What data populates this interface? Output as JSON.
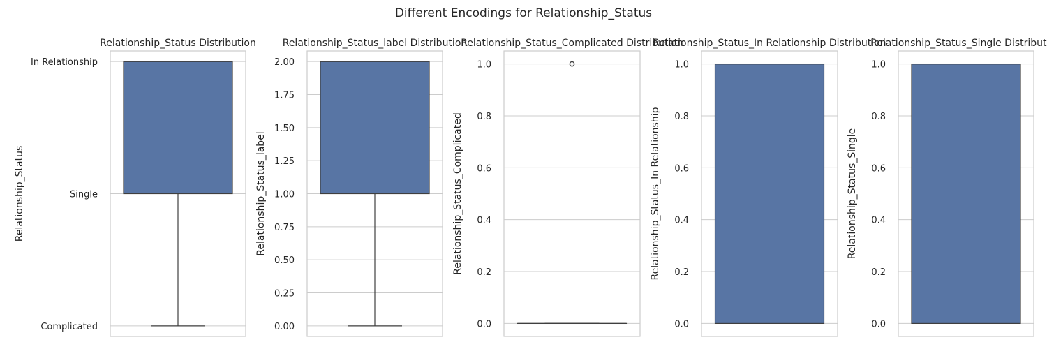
{
  "figure": {
    "title": "Different Encodings for Relationship_Status",
    "box_color": "#5875a4",
    "line_color": "#3f3f3f",
    "grid_color": "#cccccc"
  },
  "chart_data": [
    {
      "type": "box",
      "title": "Relationship_Status Distribution",
      "ylabel": "Relationship_Status",
      "y_categorical": true,
      "ytick_labels": [
        "Complicated",
        "Single",
        "In Relationship"
      ],
      "ytick_values": [
        0,
        1,
        2
      ],
      "ylim": [
        -0.08,
        2.08
      ],
      "box": {
        "whisker_low": 0,
        "q1": 1,
        "median": 2,
        "q3": 2,
        "whisker_high": 2,
        "fliers": []
      },
      "grid": true
    },
    {
      "type": "box",
      "title": "Relationship_Status_label Distribution",
      "ylabel": "Relationship_Status_label",
      "y_categorical": false,
      "ytick_labels": [
        "0.00",
        "0.25",
        "0.50",
        "0.75",
        "1.00",
        "1.25",
        "1.50",
        "1.75",
        "2.00"
      ],
      "ytick_values": [
        0,
        0.25,
        0.5,
        0.75,
        1.0,
        1.25,
        1.5,
        1.75,
        2.0
      ],
      "ylim": [
        -0.08,
        2.08
      ],
      "box": {
        "whisker_low": 0,
        "q1": 1,
        "median": 2,
        "q3": 2,
        "whisker_high": 2,
        "fliers": []
      },
      "grid": true
    },
    {
      "type": "box",
      "title": "Relationship_Status_Complicated Distribution",
      "ylabel": "Relationship_Status_Complicated",
      "y_categorical": false,
      "ytick_labels": [
        "0.0",
        "0.2",
        "0.4",
        "0.6",
        "0.8",
        "1.0"
      ],
      "ytick_values": [
        0,
        0.2,
        0.4,
        0.6,
        0.8,
        1.0
      ],
      "ylim": [
        -0.05,
        1.05
      ],
      "box": {
        "whisker_low": 0,
        "q1": 0,
        "median": 0,
        "q3": 0,
        "whisker_high": 0,
        "fliers": [
          1.0
        ]
      },
      "grid": true
    },
    {
      "type": "box",
      "title": "Relationship_Status_In Relationship Distribution",
      "ylabel": "Relationship_Status_In Relationship",
      "y_categorical": false,
      "ytick_labels": [
        "0.0",
        "0.2",
        "0.4",
        "0.6",
        "0.8",
        "1.0"
      ],
      "ytick_values": [
        0,
        0.2,
        0.4,
        0.6,
        0.8,
        1.0
      ],
      "ylim": [
        -0.05,
        1.05
      ],
      "box": {
        "whisker_low": 0,
        "q1": 0,
        "median": 1,
        "q3": 1,
        "whisker_high": 1,
        "fliers": []
      },
      "grid": true
    },
    {
      "type": "box",
      "title": "Relationship_Status_Single Distribution",
      "ylabel": "Relationship_Status_Single",
      "y_categorical": false,
      "ytick_labels": [
        "0.0",
        "0.2",
        "0.4",
        "0.6",
        "0.8",
        "1.0"
      ],
      "ytick_values": [
        0,
        0.2,
        0.4,
        0.6,
        0.8,
        1.0
      ],
      "ylim": [
        -0.05,
        1.05
      ],
      "box": {
        "whisker_low": 0,
        "q1": 0,
        "median": 1,
        "q3": 1,
        "whisker_high": 1,
        "fliers": []
      },
      "grid": true
    }
  ]
}
